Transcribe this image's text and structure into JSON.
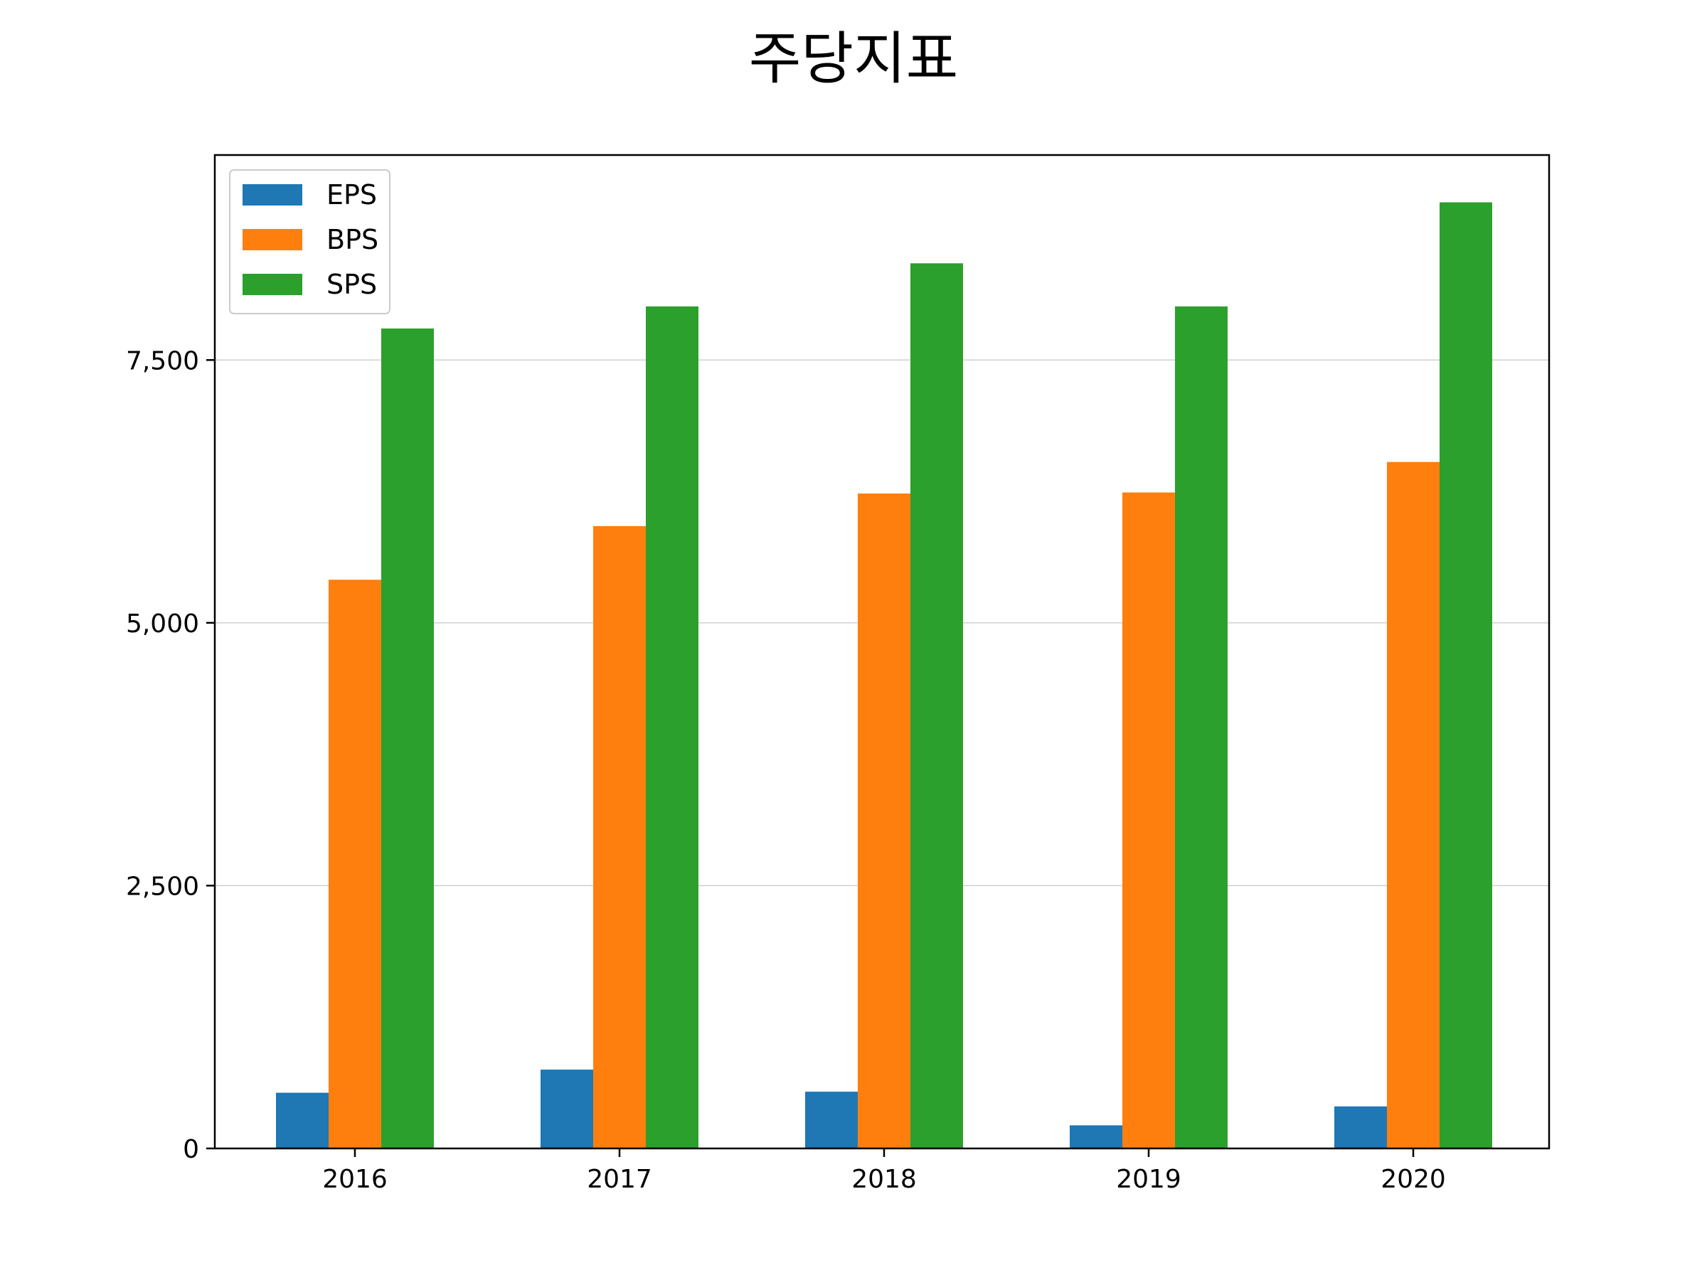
{
  "chart_data": {
    "type": "bar",
    "title": "주당지표",
    "xlabel": "",
    "ylabel": "",
    "categories": [
      "2016",
      "2017",
      "2018",
      "2019",
      "2020"
    ],
    "series": [
      {
        "name": "EPS",
        "color": "#1f77b4",
        "values": [
          530,
          750,
          540,
          220,
          400
        ]
      },
      {
        "name": "BPS",
        "color": "#ff7f0e",
        "values": [
          5410,
          5920,
          6230,
          6240,
          6530
        ]
      },
      {
        "name": "SPS",
        "color": "#2ca02c",
        "values": [
          7800,
          8010,
          8420,
          8010,
          9000
        ]
      }
    ],
    "yticks": [
      0,
      2500,
      5000,
      7500
    ],
    "ytick_labels": [
      "0",
      "2,500",
      "5,000",
      "7,500"
    ],
    "ylim": [
      0,
      9450
    ],
    "grid": "y",
    "legend_position": "upper-left"
  }
}
